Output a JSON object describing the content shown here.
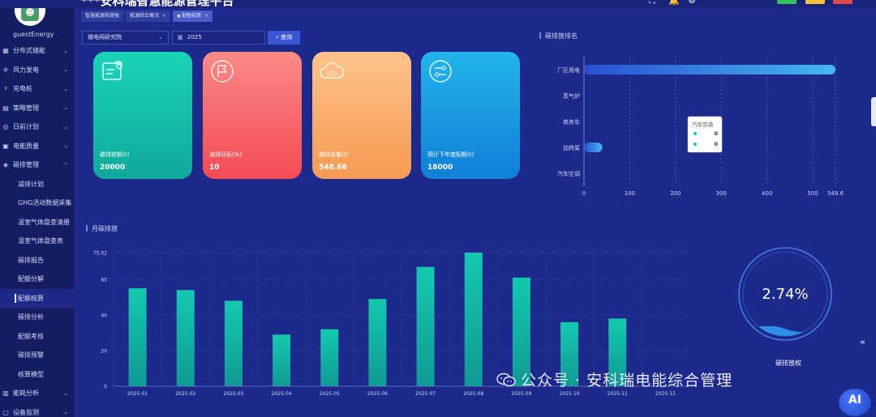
{
  "header": {
    "title": "***安科瑞智慧能源管理平台",
    "colors": {
      "btn1": "#37c05e",
      "btn2": "#f2c23a",
      "btn3": "#e0474c"
    }
  },
  "sidebar": {
    "username": "guestEnergy",
    "items": [
      {
        "label": "分布式储能",
        "icon": "grid-icon",
        "arrow": "⌄",
        "sub": false,
        "active": false
      },
      {
        "label": "风力发电",
        "icon": "wind-icon",
        "arrow": "⌄",
        "sub": false,
        "active": false
      },
      {
        "label": "充电桩",
        "icon": "charger-icon",
        "arrow": "⌄",
        "sub": false,
        "active": false
      },
      {
        "label": "策略管理",
        "icon": "strategy-icon",
        "arrow": "⌄",
        "sub": false,
        "active": false
      },
      {
        "label": "日前计划",
        "icon": "plan-icon",
        "arrow": "⌄",
        "sub": false,
        "active": false
      },
      {
        "label": "电能质量",
        "icon": "quality-icon",
        "arrow": "⌄",
        "sub": false,
        "active": false
      },
      {
        "label": "碳排管理",
        "icon": "carbon-icon",
        "arrow": "⌃",
        "sub": false,
        "active": false
      },
      {
        "label": "减排计划",
        "sub": true,
        "active": false
      },
      {
        "label": "GHG活动数据采集",
        "sub": true,
        "active": false
      },
      {
        "label": "温室气体盘查清册",
        "sub": true,
        "active": false
      },
      {
        "label": "温室气体盘查表",
        "sub": true,
        "active": false
      },
      {
        "label": "碳排报告",
        "sub": true,
        "active": false
      },
      {
        "label": "配额分解",
        "sub": true,
        "active": false
      },
      {
        "label": "配额核算",
        "sub": true,
        "active": true
      },
      {
        "label": "碳排分析",
        "sub": true,
        "active": false
      },
      {
        "label": "配额考核",
        "sub": true,
        "active": false
      },
      {
        "label": "碳排预警",
        "sub": true,
        "active": false
      },
      {
        "label": "核算模型",
        "sub": true,
        "active": false
      },
      {
        "label": "能耗分析",
        "icon": "analysis-icon",
        "arrow": "⌄",
        "sub": false,
        "active": false
      },
      {
        "label": "设备监测",
        "icon": "monitor-icon",
        "arrow": "⌄",
        "sub": false,
        "active": false
      }
    ]
  },
  "tabs": [
    {
      "label": "智慧能源驾驶舱",
      "active": false,
      "closable": false
    },
    {
      "label": "能源综合概况",
      "active": false,
      "closable": true
    },
    {
      "label": "配额核算",
      "active": true,
      "closable": true
    }
  ],
  "filters": {
    "site": "微电网研究院",
    "year": "2025",
    "query_label": "查询"
  },
  "cards": [
    {
      "label": "碳排放额(t)",
      "value": "20000",
      "icon": "document-check-icon"
    },
    {
      "label": "减排目标(%)",
      "value": "10",
      "icon": "flag-icon"
    },
    {
      "label": "碳排放量(t)",
      "value": "548.68",
      "icon": "co2-cloud-icon"
    },
    {
      "label": "预计下年度配额(t)",
      "value": "18000",
      "icon": "flow-icon"
    }
  ],
  "ranking": {
    "title": "碳排放排名",
    "chart_data": {
      "type": "bar",
      "orientation": "horizontal",
      "categories": [
        "厂区用电",
        "蒸气炉",
        "商务车",
        "加热泵",
        "汽车空调"
      ],
      "values": [
        549.6,
        0,
        0,
        40,
        0
      ],
      "xlim": [
        0,
        549.6
      ],
      "xticks": [
        "0",
        "100",
        "200",
        "300",
        "400",
        "500",
        "549.6"
      ],
      "grid": true
    },
    "tooltip": {
      "title": "汽车空调",
      "rows": [
        "0",
        "0"
      ]
    }
  },
  "monthly": {
    "title": "月碳排放",
    "chart_data": {
      "type": "bar",
      "categories": [
        "2025-01",
        "2025-02",
        "2025-03",
        "2025-04",
        "2025-05",
        "2025-06",
        "2025-07",
        "2025-08",
        "2025-09",
        "2025-10",
        "2025-11",
        "2025-12"
      ],
      "values": [
        55,
        54,
        48,
        29,
        32,
        49,
        67,
        75,
        61,
        36,
        38,
        0
      ],
      "ylim": [
        0,
        75.02
      ],
      "yticks": [
        "0",
        "20",
        "40",
        "60",
        "75.02"
      ],
      "grid": true
    }
  },
  "gauge": {
    "percent": 2.74,
    "value_text": "2.74%",
    "label": "碳排放权"
  },
  "watermark": {
    "text": "公众号 · 安科瑞电能综合管理"
  },
  "ai_badge": {
    "text": "AI"
  }
}
